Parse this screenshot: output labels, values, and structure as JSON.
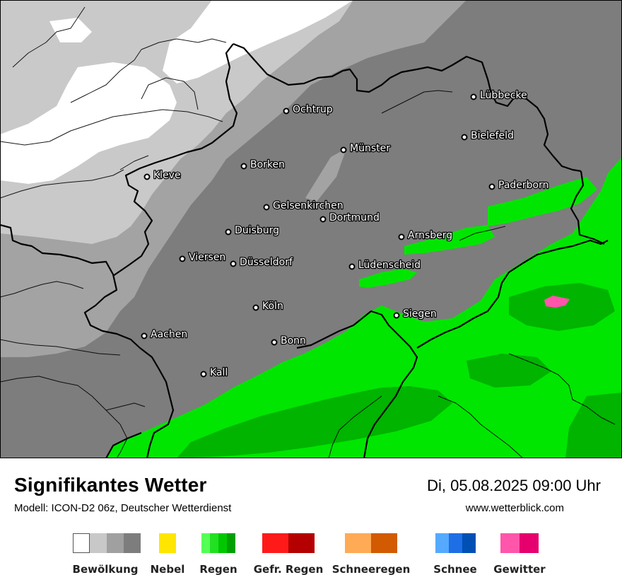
{
  "title": "Signifikantes Wetter",
  "subtitle": "Modell: ICON-D2 06z, Deutscher Wetterdienst",
  "datetime": "Di, 05.08.2025 09:00 Uhr",
  "url": "www.wetterblick.com",
  "cities": [
    {
      "name": "Ochtrup"
    },
    {
      "name": "Lübbecke"
    },
    {
      "name": "Bielefeld"
    },
    {
      "name": "Münster"
    },
    {
      "name": "Borken"
    },
    {
      "name": "Kleve"
    },
    {
      "name": "Paderborn"
    },
    {
      "name": "Gelsenkirchen"
    },
    {
      "name": "Dortmund"
    },
    {
      "name": "Duisburg"
    },
    {
      "name": "Arnsberg"
    },
    {
      "name": "Viersen"
    },
    {
      "name": "Düsseldorf"
    },
    {
      "name": "Lüdenscheid"
    },
    {
      "name": "Köln"
    },
    {
      "name": "Siegen"
    },
    {
      "name": "Aachen"
    },
    {
      "name": "Bonn"
    },
    {
      "name": "Kall"
    }
  ],
  "legend": [
    {
      "label": "Bewölkung",
      "colors": [
        "#ffffff",
        "#c8c8c8",
        "#a0a0a0",
        "#7d7d7d"
      ]
    },
    {
      "label": "Nebel",
      "colors": [
        "#ffe600"
      ]
    },
    {
      "label": "Regen",
      "colors": [
        "#55ff55",
        "#22e022",
        "#00c800",
        "#00a000"
      ]
    },
    {
      "label": "Gefr. Regen",
      "colors": [
        "#ff1a1a",
        "#b40000"
      ]
    },
    {
      "label": "Schneeregen",
      "colors": [
        "#ffaa55",
        "#d25a00"
      ]
    },
    {
      "label": "Schnee",
      "colors": [
        "#55aaff",
        "#1e6ee6",
        "#0050b4"
      ]
    },
    {
      "label": "Gewitter",
      "colors": [
        "#ff55aa",
        "#e6006e"
      ]
    }
  ],
  "map_colors": {
    "white": "#ffffff",
    "light_gray": "#c9c9c9",
    "mid_gray": "#a3a3a3",
    "dark_gray": "#7d7d7d",
    "rain_light": "#00e600",
    "rain_dark": "#00b400",
    "thunder": "#ff55aa",
    "border": "#000000"
  }
}
